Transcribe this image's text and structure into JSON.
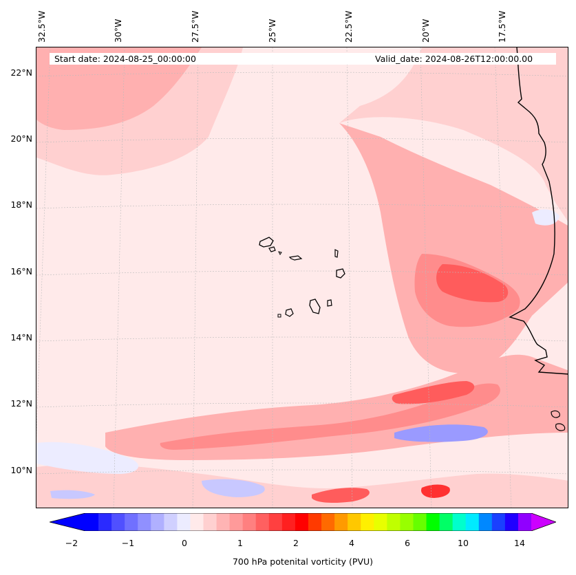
{
  "header": {
    "start_date": "Start date: 2024-08-25_00:00:00",
    "valid_date": "Valid_date: 2024-08-26T12:00:00.00"
  },
  "lat_labels": [
    "22°N",
    "20°N",
    "18°N",
    "16°N",
    "14°N",
    "12°N",
    "10°N"
  ],
  "lon_labels": [
    "32.5°W",
    "30°W",
    "27.5°W",
    "25°W",
    "22.5°W",
    "20°W",
    "17.5°W"
  ],
  "colorbar": {
    "label": "700 hPa potenital vorticity (PVU)",
    "tick_labels": [
      "−2",
      "−1",
      "0",
      "1",
      "2",
      "4",
      "6",
      "10",
      "14"
    ],
    "colors": [
      "#0000ff",
      "#2a2aff",
      "#5050ff",
      "#7070ff",
      "#9090ff",
      "#b0b0ff",
      "#d0d0ff",
      "#ececff",
      "#ffeaea",
      "#ffd0d0",
      "#ffb4b4",
      "#ff9a9a",
      "#ff8080",
      "#ff6060",
      "#ff4040",
      "#ff2020",
      "#ff0000",
      "#ff3a00",
      "#ff6a00",
      "#ff9a00",
      "#ffc800",
      "#fff000",
      "#e8ff00",
      "#c0ff00",
      "#98ff00",
      "#66ff00",
      "#00ff00",
      "#00ff66",
      "#00ffcc",
      "#00eaff",
      "#0088ff",
      "#1a40ff",
      "#2000ff",
      "#9000ff"
    ],
    "extend_min_color": "#0000ff",
    "extend_max_color": "#cc00ff"
  },
  "field_colors": {
    "background": "#ffeaea",
    "light": "#ffd0d0",
    "medium": "#ffb0b0",
    "strong": "#ff8c8c",
    "intense": "#ff5c5c",
    "peak": "#ff3030",
    "negative_light": "#ececff",
    "negative": "#c8c8ff",
    "negative_strong": "#9a9aff"
  }
}
